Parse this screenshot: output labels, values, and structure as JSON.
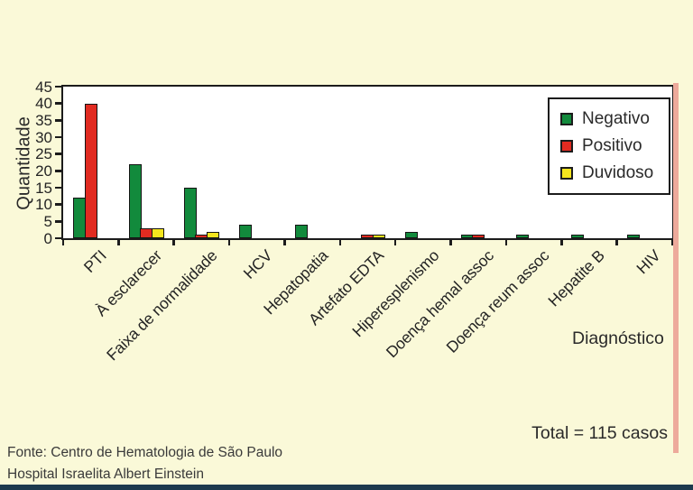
{
  "colors": {
    "background": "#faf9d8",
    "plot_background": "#ffffff",
    "axis": "#1c1c1c",
    "text": "#2a2a2a",
    "bottom_bar": "#1d3a4d",
    "edge_strip": "#edaa9b"
  },
  "chart_data": {
    "type": "bar",
    "title": "",
    "ylabel": "Quantidade",
    "xlabel": "Diagnóstico",
    "ylim": [
      0,
      45
    ],
    "ytick_step": 5,
    "yticks": [
      45,
      40,
      35,
      30,
      25,
      20,
      15,
      10,
      5,
      0
    ],
    "grid": false,
    "legend_position": "top-right",
    "categories": [
      "PTI",
      "À esclarecer",
      "Faixa de normalidade",
      "HCV",
      "Hepatopatia",
      "Artefato EDTA",
      "Hiperesplenismo",
      "Doença hemal assoc",
      "Doença reum assoc",
      "Hepatite B",
      "HIV"
    ],
    "series": [
      {
        "name": "Negativo",
        "color": "#128a3c",
        "values": [
          12,
          22,
          15,
          4,
          4,
          0,
          2,
          1,
          1,
          1,
          1
        ]
      },
      {
        "name": "Positivo",
        "color": "#e12b21",
        "values": [
          40,
          3,
          1,
          0,
          0,
          1,
          0,
          1,
          0,
          0,
          0
        ]
      },
      {
        "name": "Duvidoso",
        "color": "#f5e51e",
        "values": [
          0,
          3,
          2,
          0,
          0,
          1,
          0,
          0,
          0,
          0,
          0
        ]
      }
    ]
  },
  "annotations": {
    "total": "Total = 115 casos"
  },
  "footer": {
    "line1": "Fonte: Centro de Hematologia de São Paulo",
    "line2": "Hospital Israelita Albert Einstein"
  }
}
